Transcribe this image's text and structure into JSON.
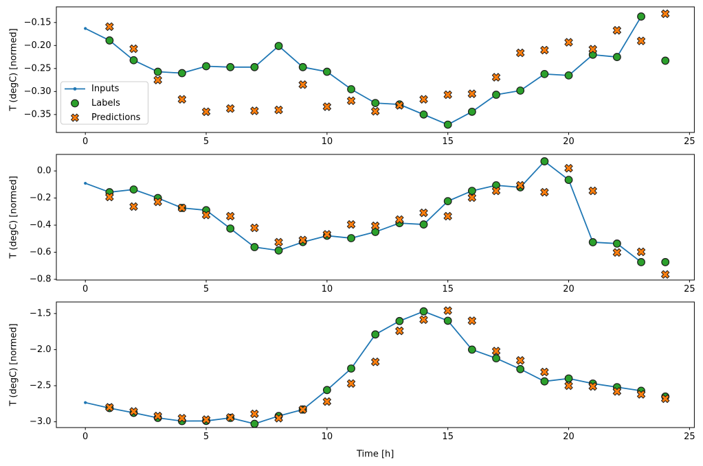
{
  "figure": {
    "background": "#ffffff",
    "xlabel": "Time [h]",
    "ylabel": "T (degC) [normed]",
    "legend": {
      "position": "center left of first subplot",
      "items": [
        {
          "label": "Inputs",
          "marker": "line-with-dot",
          "color": "#1f77b4"
        },
        {
          "label": "Labels",
          "marker": "circle",
          "color": "#2ca02c"
        },
        {
          "label": "Predictions",
          "marker": "x-filled",
          "color": "#ff7f0e"
        }
      ]
    },
    "colors": {
      "inputs": "#1f77b4",
      "labels": "#2ca02c",
      "predictions": "#ff7f0e",
      "marker_edge": "#1a1a1a",
      "axis": "#000000",
      "legend_border": "#cccccc",
      "legend_bg": "rgba(255,255,255,0.85)"
    }
  },
  "chart_data": [
    {
      "type": "line",
      "subtype": "line-plus-scatter",
      "title": "",
      "xlabel": "",
      "ylabel": "T (degC) [normed]",
      "xlim": [
        -1.2,
        25.2
      ],
      "ylim": [
        -0.389,
        -0.116
      ],
      "grid": false,
      "xticks": {
        "values": [
          0,
          5,
          10,
          15,
          20,
          25
        ],
        "labels": [
          "0",
          "5",
          "10",
          "15",
          "20",
          "25"
        ]
      },
      "yticks": {
        "values": [
          -0.15,
          -0.2,
          -0.25,
          -0.3,
          -0.35
        ],
        "labels": [
          "−0.15",
          "−0.20",
          "−0.25",
          "−0.30",
          "−0.35"
        ]
      },
      "legend_here": true,
      "series": [
        {
          "name": "Inputs",
          "style": "line-dots",
          "color": "#1f77b4",
          "x": [
            0,
            1,
            2,
            3,
            4,
            5,
            6,
            7,
            8,
            9,
            10,
            11,
            12,
            13,
            14,
            15,
            16,
            17,
            18,
            19,
            20,
            21,
            22,
            23
          ],
          "y": [
            -0.163,
            -0.189,
            -0.232,
            -0.257,
            -0.26,
            -0.245,
            -0.247,
            -0.247,
            -0.201,
            -0.247,
            -0.257,
            -0.295,
            -0.325,
            -0.328,
            -0.35,
            -0.372,
            -0.344,
            -0.307,
            -0.298,
            -0.262,
            -0.265,
            -0.22,
            -0.225,
            -0.137
          ]
        },
        {
          "name": "Labels",
          "style": "scatter-circle",
          "color": "#2ca02c",
          "x": [
            1,
            2,
            3,
            4,
            5,
            6,
            7,
            8,
            9,
            10,
            11,
            12,
            13,
            14,
            15,
            16,
            17,
            18,
            19,
            20,
            21,
            22,
            23,
            24
          ],
          "y": [
            -0.189,
            -0.232,
            -0.257,
            -0.26,
            -0.245,
            -0.247,
            -0.247,
            -0.201,
            -0.247,
            -0.257,
            -0.295,
            -0.325,
            -0.328,
            -0.35,
            -0.372,
            -0.344,
            -0.307,
            -0.298,
            -0.262,
            -0.265,
            -0.22,
            -0.225,
            -0.137,
            -0.233
          ]
        },
        {
          "name": "Predictions",
          "style": "scatter-x",
          "color": "#ff7f0e",
          "x": [
            1,
            2,
            3,
            4,
            5,
            6,
            7,
            8,
            9,
            10,
            11,
            12,
            13,
            14,
            15,
            16,
            17,
            18,
            19,
            20,
            21,
            22,
            23,
            24
          ],
          "y": [
            -0.159,
            -0.207,
            -0.275,
            -0.317,
            -0.344,
            -0.337,
            -0.342,
            -0.34,
            -0.285,
            -0.333,
            -0.32,
            -0.343,
            -0.33,
            -0.317,
            -0.307,
            -0.305,
            -0.269,
            -0.216,
            -0.21,
            -0.193,
            -0.208,
            -0.167,
            -0.19,
            -0.131
          ]
        }
      ]
    },
    {
      "type": "line",
      "subtype": "line-plus-scatter",
      "title": "",
      "xlabel": "",
      "ylabel": "T (degC) [normed]",
      "xlim": [
        -1.2,
        25.2
      ],
      "ylim": [
        -0.805,
        0.122
      ],
      "grid": false,
      "xticks": {
        "values": [
          0,
          5,
          10,
          15,
          20,
          25
        ],
        "labels": [
          "0",
          "5",
          "10",
          "15",
          "20",
          "25"
        ]
      },
      "yticks": {
        "values": [
          0.0,
          -0.2,
          -0.4,
          -0.6,
          -0.8
        ],
        "labels": [
          "0.0",
          "−0.2",
          "−0.4",
          "−0.6",
          "−0.8"
        ]
      },
      "legend_here": false,
      "series": [
        {
          "name": "Inputs",
          "style": "line-dots",
          "color": "#1f77b4",
          "x": [
            0,
            1,
            2,
            3,
            4,
            5,
            6,
            7,
            8,
            9,
            10,
            11,
            12,
            13,
            14,
            15,
            16,
            17,
            18,
            19,
            20,
            21,
            22,
            23
          ],
          "y": [
            -0.091,
            -0.157,
            -0.137,
            -0.2,
            -0.273,
            -0.29,
            -0.425,
            -0.562,
            -0.587,
            -0.525,
            -0.478,
            -0.496,
            -0.45,
            -0.385,
            -0.395,
            -0.223,
            -0.147,
            -0.106,
            -0.121,
            0.071,
            -0.066,
            -0.526,
            -0.536,
            -0.673
          ]
        },
        {
          "name": "Labels",
          "style": "scatter-circle",
          "color": "#2ca02c",
          "x": [
            1,
            2,
            3,
            4,
            5,
            6,
            7,
            8,
            9,
            10,
            11,
            12,
            13,
            14,
            15,
            16,
            17,
            18,
            19,
            20,
            21,
            22,
            23,
            24
          ],
          "y": [
            -0.157,
            -0.137,
            -0.2,
            -0.273,
            -0.29,
            -0.425,
            -0.562,
            -0.587,
            -0.525,
            -0.478,
            -0.496,
            -0.45,
            -0.385,
            -0.395,
            -0.223,
            -0.147,
            -0.106,
            -0.121,
            0.071,
            -0.066,
            -0.526,
            -0.536,
            -0.673,
            -0.673
          ]
        },
        {
          "name": "Predictions",
          "style": "scatter-x",
          "color": "#ff7f0e",
          "x": [
            1,
            2,
            3,
            4,
            5,
            6,
            7,
            8,
            9,
            10,
            11,
            12,
            13,
            14,
            15,
            16,
            17,
            18,
            19,
            20,
            21,
            22,
            23,
            24
          ],
          "y": [
            -0.192,
            -0.263,
            -0.228,
            -0.273,
            -0.325,
            -0.334,
            -0.42,
            -0.526,
            -0.51,
            -0.468,
            -0.395,
            -0.405,
            -0.359,
            -0.309,
            -0.334,
            -0.197,
            -0.147,
            -0.106,
            -0.157,
            0.02,
            -0.147,
            -0.602,
            -0.597,
            -0.764
          ]
        }
      ]
    },
    {
      "type": "line",
      "subtype": "line-plus-scatter",
      "title": "",
      "xlabel": "Time [h]",
      "ylabel": "T (degC) [normed]",
      "xlim": [
        -1.2,
        25.2
      ],
      "ylim": [
        -3.08,
        -1.34
      ],
      "grid": false,
      "xticks": {
        "values": [
          0,
          5,
          10,
          15,
          20,
          25
        ],
        "labels": [
          "0",
          "5",
          "10",
          "15",
          "20",
          "25"
        ]
      },
      "yticks": {
        "values": [
          -1.5,
          -2.0,
          -2.5,
          -3.0
        ],
        "labels": [
          "−1.5",
          "−2.0",
          "−2.5",
          "−3.0"
        ]
      },
      "legend_here": false,
      "series": [
        {
          "name": "Inputs",
          "style": "line-dots",
          "color": "#1f77b4",
          "x": [
            0,
            1,
            2,
            3,
            4,
            5,
            6,
            7,
            8,
            9,
            10,
            11,
            12,
            13,
            14,
            15,
            16,
            17,
            18,
            19,
            20,
            21,
            22,
            23
          ],
          "y": [
            -2.734,
            -2.81,
            -2.876,
            -2.946,
            -2.99,
            -2.988,
            -2.946,
            -3.028,
            -2.92,
            -2.83,
            -2.56,
            -2.262,
            -1.79,
            -1.604,
            -1.47,
            -1.6,
            -2.0,
            -2.12,
            -2.27,
            -2.44,
            -2.4,
            -2.47,
            -2.52,
            -2.57
          ]
        },
        {
          "name": "Labels",
          "style": "scatter-circle",
          "color": "#2ca02c",
          "x": [
            1,
            2,
            3,
            4,
            5,
            6,
            7,
            8,
            9,
            10,
            11,
            12,
            13,
            14,
            15,
            16,
            17,
            18,
            19,
            20,
            21,
            22,
            23,
            24
          ],
          "y": [
            -2.81,
            -2.876,
            -2.946,
            -2.99,
            -2.988,
            -2.946,
            -3.028,
            -2.92,
            -2.83,
            -2.56,
            -2.262,
            -1.79,
            -1.604,
            -1.47,
            -1.6,
            -2.0,
            -2.12,
            -2.27,
            -2.44,
            -2.4,
            -2.47,
            -2.52,
            -2.57,
            -2.65
          ]
        },
        {
          "name": "Predictions",
          "style": "scatter-x",
          "color": "#ff7f0e",
          "x": [
            1,
            2,
            3,
            4,
            5,
            6,
            7,
            8,
            9,
            10,
            11,
            12,
            13,
            14,
            15,
            16,
            17,
            18,
            19,
            20,
            21,
            22,
            23,
            24
          ],
          "y": [
            -2.8,
            -2.857,
            -2.92,
            -2.95,
            -2.97,
            -2.94,
            -2.89,
            -2.95,
            -2.83,
            -2.72,
            -2.47,
            -2.17,
            -1.74,
            -1.585,
            -1.46,
            -1.6,
            -2.02,
            -2.15,
            -2.31,
            -2.5,
            -2.51,
            -2.58,
            -2.62,
            -2.68
          ]
        }
      ]
    }
  ]
}
